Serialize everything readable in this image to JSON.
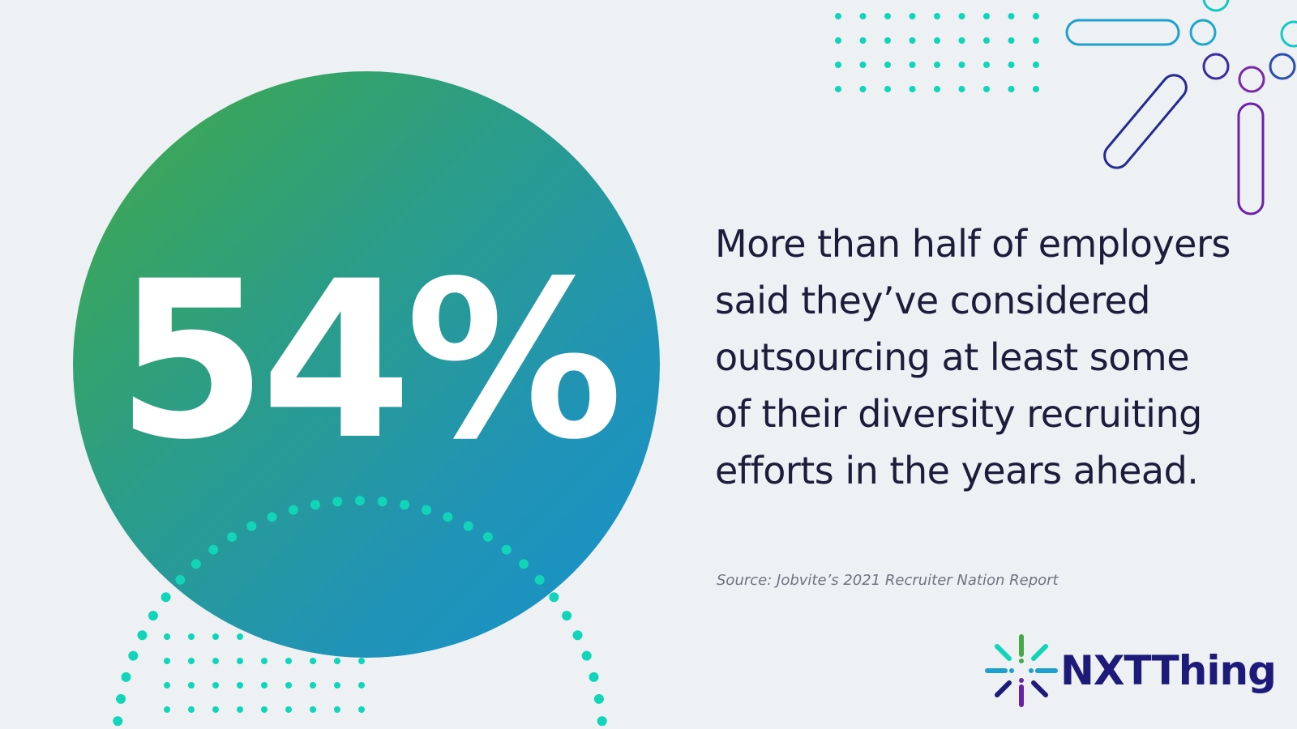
{
  "stat": {
    "value": "54%"
  },
  "quote": {
    "lines": [
      "More than half of employers",
      "said they’ve considered",
      "outsourcing at least some",
      "of their diversity recruiting",
      "efforts in the years ahead."
    ]
  },
  "source": {
    "text": "Source: Jobvite’s 2021 Recruiter Nation Report"
  },
  "brand": {
    "name": "NXTThing",
    "colors": {
      "navy": "#1d1a7a",
      "teal": "#11d4b9",
      "green": "#43aa45",
      "blue": "#1690cc",
      "purple": "#6a23a8"
    }
  },
  "decor": {
    "icons": [
      "dot-grid-icon",
      "dotted-arc-icon",
      "pill-outline-icon",
      "ring-outline-icon",
      "starburst-logo-icon"
    ]
  }
}
